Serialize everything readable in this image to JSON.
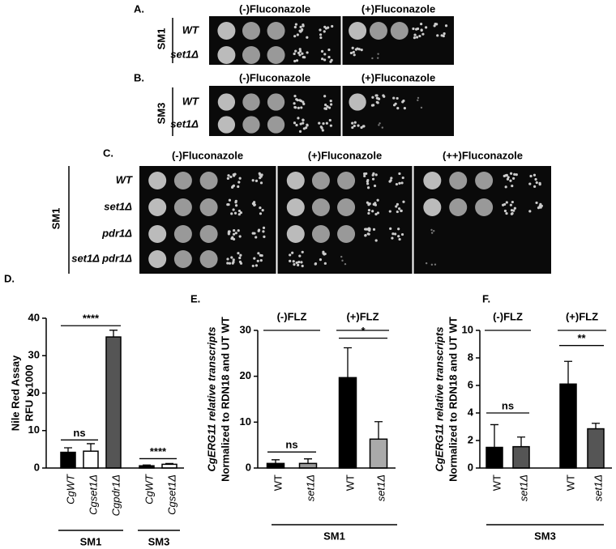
{
  "spot_panels": [
    {
      "label": "A.",
      "strain": "SM1",
      "conditions": [
        "(-)Fluconazole",
        "(+)Fluconazole"
      ],
      "rows": [
        "WT",
        "set1Δ"
      ]
    },
    {
      "label": "B.",
      "strain": "SM3",
      "conditions": [
        "(-)Fluconazole",
        "(+)Fluconazole"
      ],
      "rows": [
        "WT",
        "set1Δ"
      ]
    },
    {
      "label": "C.",
      "strain": "SM1",
      "conditions": [
        "(-)Fluconazole",
        "(+)Fluconazole",
        "(++)Fluconazole"
      ],
      "rows": [
        "WT",
        "set1Δ",
        "pdr1Δ",
        "set1Δ pdr1Δ"
      ]
    }
  ],
  "chart_data": [
    {
      "type": "bar",
      "title": "D.",
      "ylabel": [
        "Nile Red Assay",
        "RFU x 1000"
      ],
      "categories": [
        "CgWT",
        "Cgset1Δ",
        "Cgpdr1Δ",
        "CgWT",
        "Cgset1Δ"
      ],
      "values": [
        4.2,
        4.5,
        35,
        0.6,
        1.0
      ],
      "errors": [
        1.2,
        2.0,
        1.8,
        0.2,
        0.2
      ],
      "colors": [
        "#000000",
        "#ffffff",
        "#555555",
        "#000000",
        "#ffffff"
      ],
      "ylim": [
        0,
        40
      ],
      "yticks": [
        0,
        10,
        20,
        30,
        40
      ],
      "annotations": [
        "ns",
        "****",
        "****"
      ],
      "headings": [],
      "groups": [
        "SM1",
        "SM3"
      ]
    },
    {
      "type": "bar",
      "title": "E.",
      "ylabel": [
        "CgERG11 relative transcripts",
        "Normalized to RDN18 and UT WT"
      ],
      "categories": [
        "WT",
        "set1Δ",
        "WT",
        "set1Δ"
      ],
      "values": [
        1.0,
        1.0,
        19.7,
        6.3
      ],
      "errors": [
        0.8,
        1.0,
        6.5,
        3.8
      ],
      "colors": [
        "#000000",
        "#999999",
        "#000000",
        "#aaaaaa"
      ],
      "ylim": [
        0,
        30
      ],
      "yticks": [
        0,
        10,
        20,
        30
      ],
      "annotations": [
        "ns",
        "*"
      ],
      "headings": [
        "(-)FLZ",
        "(+)FLZ"
      ],
      "groups": [
        "SM1"
      ]
    },
    {
      "type": "bar",
      "title": "F.",
      "ylabel": [
        "CgERG11 relative transcripts",
        "Normalized to RDN18 and UT WT"
      ],
      "categories": [
        "WT",
        "set1Δ",
        "WT",
        "set1Δ"
      ],
      "values": [
        1.5,
        1.55,
        6.1,
        2.85
      ],
      "errors": [
        1.65,
        0.7,
        1.65,
        0.4
      ],
      "colors": [
        "#000000",
        "#555555",
        "#000000",
        "#555555"
      ],
      "ylim": [
        0,
        10
      ],
      "yticks": [
        0,
        2,
        4,
        6,
        8,
        10
      ],
      "annotations": [
        "ns",
        "**"
      ],
      "headings": [
        "(-)FLZ",
        "(+)FLZ"
      ],
      "groups": [
        "SM3"
      ]
    }
  ]
}
